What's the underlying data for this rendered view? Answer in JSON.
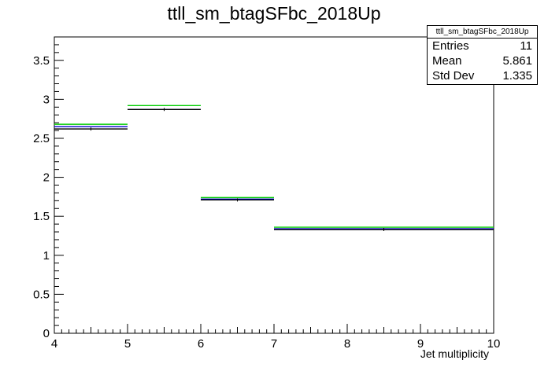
{
  "chart_data": {
    "type": "histogram",
    "title": "ttll_sm_btagSFbc_2018Up",
    "xlabel": "Jet multiplicity",
    "ylabel": "",
    "xlim": [
      4,
      10
    ],
    "ylim": [
      0,
      3.8
    ],
    "xticks": [
      "4",
      "5",
      "6",
      "7",
      "8",
      "9",
      "10"
    ],
    "yticks": [
      "0",
      "0.5",
      "1",
      "1.5",
      "2",
      "2.5",
      "3",
      "3.5"
    ],
    "bins": [
      {
        "x": [
          4,
          5
        ],
        "values": {
          "nominal": 2.62,
          "up_green": 2.68,
          "blue": 2.65
        }
      },
      {
        "x": [
          5,
          6
        ],
        "values": {
          "nominal": 2.87,
          "up_green": 2.92,
          "blue": 2.87
        }
      },
      {
        "x": [
          6,
          7
        ],
        "values": {
          "nominal": 1.71,
          "up_green": 1.74,
          "blue": 1.72
        }
      },
      {
        "x": [
          7,
          10
        ],
        "values": {
          "nominal": 1.33,
          "up_green": 1.36,
          "blue": 1.34
        }
      }
    ],
    "series_colors": {
      "nominal": "#000000",
      "up_green": "#00cc00",
      "blue": "#0000cc"
    },
    "stats": {
      "name": "ttll_sm_btagSFbc_2018Up",
      "entries_label": "Entries",
      "entries": "11",
      "mean_label": "Mean",
      "mean": "5.861",
      "stddev_label": "Std Dev",
      "stddev": "1.335"
    }
  }
}
